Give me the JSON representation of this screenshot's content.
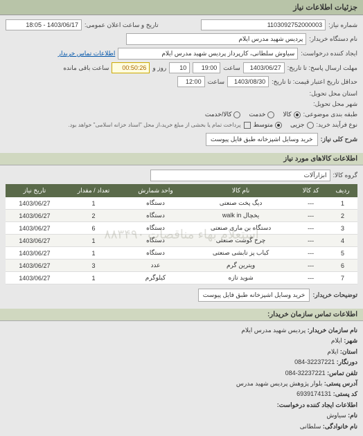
{
  "headerTitle": "جزئیات اطلاعات نیاز",
  "form": {
    "requestNoLabel": "شماره نیاز:",
    "requestNo": "1103092752000003",
    "announceDateLabel": "تاریخ و ساعت اعلان عمومی:",
    "announceDate": "1403/06/17 - 18:05",
    "buyerOrgLabel": "نام دستگاه خریدار:",
    "buyerOrg": "پردیس شهید مدرس ایلام",
    "requesterLabel": "ایجاد کننده درخواست:",
    "requester": "سیاوش سلطانی، کارپرداز پردیس شهید مدرس ایلام",
    "buyerContactLabel": "اطلاعات تماس خریدار",
    "deadlineLabel": "مهلت ارسال پاسخ: تا تاریخ:",
    "deadlineDate": "1403/06/27",
    "timeLabel": "ساعت",
    "deadlineTime": "19:00",
    "daysRemain": "10",
    "daysLabel": "روز و",
    "countdown": "00:50:26",
    "countdownLabel": "ساعت باقی مانده",
    "validityLabel": "حداقل تاریخ اعتبار قیمت: تا تاریخ:",
    "validityDate": "1403/08/30",
    "validityTime": "12:00",
    "deliveryProvinceLabel": "استان محل تحویل:",
    "deliveryCityLabel": "شهر محل تحویل:",
    "classifyLabel": "طبقه بندی موضوعی:",
    "radios": {
      "goods": "کالا",
      "service": "خدمت",
      "goodsService": "کالا/خدمت"
    },
    "processLabel": "نوع فرآیند خرید:",
    "processRadios": {
      "low": "جزیی",
      "mid": "متوسط"
    },
    "processNote": "پرداخت تمام یا بخشی از مبلغ خرید،از محل \"اسناد خزانه اسلامی\" خواهد بود.",
    "descLabel": "شرح کلی نیاز:",
    "desc": "خرید وسایل اشپزخانه طبق فایل پیوست"
  },
  "itemsSection": "اطلاعات کالاهای مورد نیاز",
  "groupLabel": "گروه کالا:",
  "groupValue": "ابزارآلات",
  "table": {
    "columns": [
      "ردیف",
      "کد کالا",
      "نام کالا",
      "واحد شمارش",
      "تعداد / مقدار",
      "تاریخ نیاز"
    ],
    "rows": [
      [
        "1",
        "---",
        "دیگ پخت صنعتی",
        "دستگاه",
        "1",
        "1403/06/27"
      ],
      [
        "2",
        "---",
        "یخچال walk in",
        "دستگاه",
        "2",
        "1403/06/27"
      ],
      [
        "3",
        "---",
        "دستگاه بن ماری صنعتی",
        "دستگاه",
        "6",
        "1403/06/27"
      ],
      [
        "4",
        "---",
        "چرخ گوشت صنعتی",
        "دستگاه",
        "1",
        "1403/06/27"
      ],
      [
        "5",
        "---",
        "کباب پز تابشی صنعتی",
        "دستگاه",
        "1",
        "1403/06/27"
      ],
      [
        "6",
        "---",
        "ویترین گرم",
        "عدد",
        "3",
        "1403/06/27"
      ],
      [
        "7",
        "---",
        "شوید تازه",
        "کیلوگرم",
        "1",
        "1403/06/27"
      ]
    ],
    "watermark": "استعلام بهاء مناقصات ۸۸۳۴۹۰"
  },
  "buyerDescLabel": "توضیحات خریدار:",
  "buyerDesc": "خرید وسایل اشپزخانه طبق فایل پیوست",
  "contactSection": "اطلاعات تماس سازمان خریدار:",
  "footer": {
    "orgNameK": "نام سازمان خریدار:",
    "orgNameV": "پردیس شهید مدرس ایلام",
    "cityK": "شهر:",
    "cityV": "ایلام",
    "provinceK": "استان:",
    "provinceV": "ایلام",
    "faxK": "دورنگار:",
    "faxV": "32237221-084",
    "phoneK": "تلفن تماس:",
    "phoneV": "32237221-084",
    "addrK": "آدرس پستی:",
    "addrV": "بلوار پژوهش پردیس شهید مدرس",
    "postcodeK": "کد پستی:",
    "postcodeV": "6939174131",
    "creatorTitle": "اطلاعات ایجاد کننده درخواست:",
    "nameK": "نام:",
    "nameV": "سیاوش",
    "familyK": "نام خانوادگی:",
    "familyV": "سلطانی"
  },
  "colors": {
    "headerBg": "#b8c4a8",
    "sectionBg": "#d0d8c0",
    "formBg": "#e8e8e8",
    "thBg": "#5a6a4a",
    "thColor": "#ffffff",
    "countdownBg": "#fffde0"
  }
}
